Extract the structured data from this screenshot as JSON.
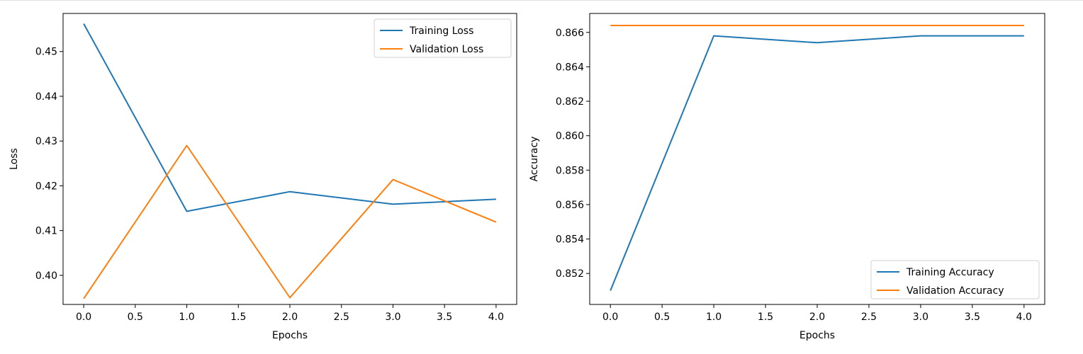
{
  "colors": {
    "series_1": "#1f77b4",
    "series_2": "#ff7f0e"
  },
  "chart_data": [
    {
      "type": "line",
      "title": "",
      "xlabel": "Epochs",
      "ylabel": "Loss",
      "x": [
        0,
        1,
        2,
        3,
        4
      ],
      "xlim": [
        -0.2,
        4.2
      ],
      "ylim": [
        0.3935,
        0.4585
      ],
      "xticks": [
        0.0,
        0.5,
        1.0,
        1.5,
        2.0,
        2.5,
        3.0,
        3.5,
        4.0
      ],
      "xtick_labels": [
        "0.0",
        "0.5",
        "1.0",
        "1.5",
        "2.0",
        "2.5",
        "3.0",
        "3.5",
        "4.0"
      ],
      "yticks": [
        0.4,
        0.41,
        0.42,
        0.43,
        0.44,
        0.45
      ],
      "ytick_labels": [
        "0.40",
        "0.41",
        "0.42",
        "0.43",
        "0.44",
        "0.45"
      ],
      "grid": false,
      "legend_position": "top-right",
      "series": [
        {
          "name": "Training Loss",
          "color": "#1f77b4",
          "values": [
            0.4562,
            0.4143,
            0.4187,
            0.4159,
            0.417
          ]
        },
        {
          "name": "Validation Loss",
          "color": "#ff7f0e",
          "values": [
            0.3948,
            0.429,
            0.395,
            0.4214,
            0.4119
          ]
        }
      ]
    },
    {
      "type": "line",
      "title": "",
      "xlabel": "Epochs",
      "ylabel": "Accuracy",
      "x": [
        0,
        1,
        2,
        3,
        4
      ],
      "xlim": [
        -0.2,
        4.2
      ],
      "ylim": [
        0.8502,
        0.8671
      ],
      "xticks": [
        0.0,
        0.5,
        1.0,
        1.5,
        2.0,
        2.5,
        3.0,
        3.5,
        4.0
      ],
      "xtick_labels": [
        "0.0",
        "0.5",
        "1.0",
        "1.5",
        "2.0",
        "2.5",
        "3.0",
        "3.5",
        "4.0"
      ],
      "yticks": [
        0.852,
        0.854,
        0.856,
        0.858,
        0.86,
        0.862,
        0.864,
        0.866
      ],
      "ytick_labels": [
        "0.852",
        "0.854",
        "0.856",
        "0.858",
        "0.860",
        "0.862",
        "0.864",
        "0.866"
      ],
      "grid": false,
      "legend_position": "bottom-right",
      "series": [
        {
          "name": "Training Accuracy",
          "color": "#1f77b4",
          "values": [
            0.851,
            0.8658,
            0.8654,
            0.8658,
            0.8658
          ]
        },
        {
          "name": "Validation Accuracy",
          "color": "#ff7f0e",
          "values": [
            0.8664,
            0.8664,
            0.8664,
            0.8664,
            0.8664
          ]
        }
      ]
    }
  ]
}
